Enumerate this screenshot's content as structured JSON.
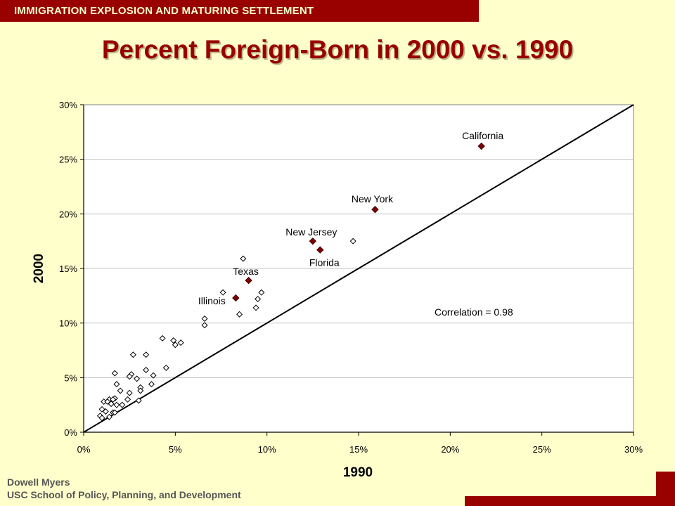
{
  "slide": {
    "header": "IMMIGRATION EXPLOSION AND MATURING SETTLEMENT",
    "title": "Percent Foreign-Born in 2000 vs. 1990",
    "author": "Dowell Myers",
    "institution": "USC School of Policy, Planning, and Development"
  },
  "colors": {
    "background": "#FFFFCC",
    "accent": "#990000",
    "highlight_marker": "#800000",
    "plot_area": "#FFFFFF"
  },
  "chart_data": {
    "type": "scatter",
    "xlabel": "1990",
    "ylabel": "2000",
    "xlim": [
      0,
      30
    ],
    "ylim": [
      0,
      30
    ],
    "x_ticks": [
      "0%",
      "5%",
      "10%",
      "15%",
      "20%",
      "25%",
      "30%"
    ],
    "y_ticks": [
      "0%",
      "5%",
      "10%",
      "15%",
      "20%",
      "25%",
      "30%"
    ],
    "grid": "horizontal",
    "reference_line": "y = x",
    "annotation": "Correlation = 0.98",
    "highlighted_points": [
      {
        "label": "California",
        "x": 21.7,
        "y": 26.2
      },
      {
        "label": "New York",
        "x": 15.9,
        "y": 20.4
      },
      {
        "label": "New Jersey",
        "x": 12.5,
        "y": 17.5
      },
      {
        "label": "Florida",
        "x": 12.9,
        "y": 16.7
      },
      {
        "label": "Texas",
        "x": 9.0,
        "y": 13.9
      },
      {
        "label": "Illinois",
        "x": 8.3,
        "y": 12.3
      }
    ],
    "other_points": [
      [
        8.7,
        15.9
      ],
      [
        14.7,
        17.5
      ],
      [
        7.6,
        12.8
      ],
      [
        9.7,
        12.8
      ],
      [
        9.5,
        12.2
      ],
      [
        9.4,
        11.4
      ],
      [
        8.5,
        10.8
      ],
      [
        6.6,
        10.4
      ],
      [
        6.6,
        9.8
      ],
      [
        4.3,
        8.6
      ],
      [
        4.9,
        8.4
      ],
      [
        5.3,
        8.2
      ],
      [
        5.0,
        8.0
      ],
      [
        2.7,
        7.1
      ],
      [
        3.4,
        7.1
      ],
      [
        4.5,
        5.9
      ],
      [
        3.4,
        5.7
      ],
      [
        1.7,
        5.4
      ],
      [
        3.8,
        5.2
      ],
      [
        2.6,
        5.3
      ],
      [
        2.5,
        5.1
      ],
      [
        2.9,
        4.9
      ],
      [
        1.8,
        4.4
      ],
      [
        3.7,
        4.4
      ],
      [
        3.1,
        4.1
      ],
      [
        2.0,
        3.8
      ],
      [
        3.1,
        3.8
      ],
      [
        2.5,
        3.6
      ],
      [
        1.7,
        3.1
      ],
      [
        1.4,
        3.0
      ],
      [
        1.6,
        3.0
      ],
      [
        1.1,
        2.8
      ],
      [
        1.3,
        2.8
      ],
      [
        2.4,
        3.0
      ],
      [
        3.0,
        2.9
      ],
      [
        1.5,
        2.6
      ],
      [
        2.1,
        2.5
      ],
      [
        1.8,
        2.5
      ],
      [
        1.0,
        2.1
      ],
      [
        1.2,
        1.9
      ],
      [
        1.6,
        1.8
      ],
      [
        1.7,
        1.8
      ],
      [
        0.9,
        1.5
      ],
      [
        1.0,
        1.3
      ],
      [
        1.4,
        1.4
      ]
    ]
  }
}
